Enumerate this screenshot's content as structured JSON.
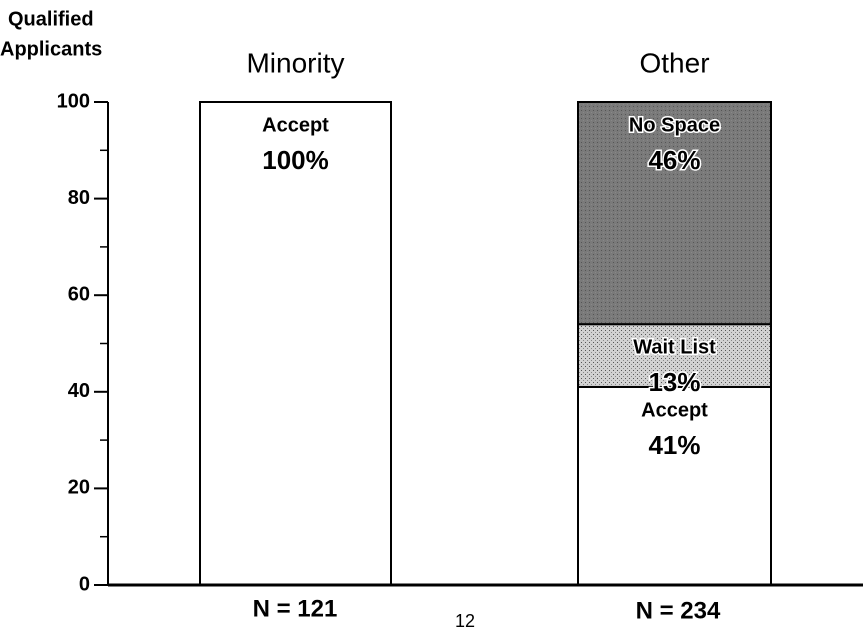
{
  "chart_data": {
    "type": "stacked_bar",
    "ylabel": [
      "Qualified",
      "Applicants"
    ],
    "categories": [
      "Minority",
      "Other"
    ],
    "n_labels": [
      "N = 121",
      "N = 234"
    ],
    "page_number": "12",
    "series": [
      {
        "name": "Accept",
        "color": "#ffffff",
        "values": [
          100,
          41
        ],
        "value_labels": [
          "100%",
          "41%"
        ]
      },
      {
        "name": "Wait List",
        "color": "#d2d2d2",
        "values": [
          null,
          13
        ],
        "value_labels": [
          null,
          "13%"
        ]
      },
      {
        "name": "No Space",
        "color": "#7a7a7a",
        "values": [
          null,
          46
        ],
        "value_labels": [
          null,
          "46%"
        ]
      }
    ],
    "ylim": [
      0,
      100
    ],
    "yticks": [
      0,
      20,
      40,
      60,
      80,
      100
    ],
    "yminorticks": [
      10,
      30,
      50,
      70,
      90
    ]
  }
}
